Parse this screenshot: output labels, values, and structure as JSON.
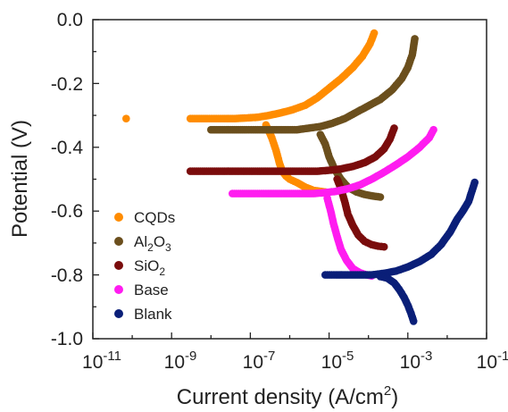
{
  "chart_data": {
    "type": "scatter",
    "title": "",
    "xlabel": "Current density (A/cm2)",
    "ylabel": "Potential (V)",
    "x_scale": "log",
    "xlim": [
      1e-11,
      0.1
    ],
    "ylim": [
      -1.0,
      0.0
    ],
    "x_ticks": [
      "10-11",
      "10-9",
      "10-7",
      "10-5",
      "10-3",
      "10-1"
    ],
    "y_ticks": [
      "0.0",
      "-0.2",
      "-0.4",
      "-0.6",
      "-0.8",
      "-1.0"
    ],
    "grid": false,
    "legend_position": "lower-left",
    "series": [
      {
        "name": "CQDs",
        "color": "#ff8c00",
        "points": [
          [
            7e-11,
            -0.31
          ],
          [
            3e-09,
            -0.31
          ],
          [
            5e-09,
            -0.31
          ],
          [
            8e-09,
            -0.31
          ],
          [
            1.2e-08,
            -0.31
          ],
          [
            2e-08,
            -0.31
          ],
          [
            4e-08,
            -0.31
          ],
          [
            8e-08,
            -0.308
          ],
          [
            1.5e-07,
            -0.306
          ],
          [
            3e-07,
            -0.3
          ],
          [
            6e-07,
            -0.292
          ],
          [
            1.2e-06,
            -0.282
          ],
          [
            2.5e-06,
            -0.268
          ],
          [
            5e-06,
            -0.245
          ],
          [
            1e-05,
            -0.215
          ],
          [
            2e-05,
            -0.185
          ],
          [
            4e-05,
            -0.15
          ],
          [
            7e-05,
            -0.115
          ],
          [
            0.00011,
            -0.075
          ],
          [
            0.00014,
            -0.042
          ],
          [
            2.5e-07,
            -0.33
          ],
          [
            3.5e-07,
            -0.37
          ],
          [
            4.5e-07,
            -0.41
          ],
          [
            5.5e-07,
            -0.45
          ],
          [
            6.5e-07,
            -0.475
          ],
          [
            8e-07,
            -0.49
          ],
          [
            1e-06,
            -0.5
          ],
          [
            1.5e-06,
            -0.51
          ],
          [
            2.5e-06,
            -0.525
          ],
          [
            4e-06,
            -0.535
          ],
          [
            8e-06,
            -0.54
          ]
        ]
      },
      {
        "name": "Al2O3",
        "color": "#6b4f1d",
        "points": [
          [
            1e-08,
            -0.345
          ],
          [
            5e-08,
            -0.345
          ],
          [
            8e-08,
            -0.345
          ],
          [
            1.2e-07,
            -0.345
          ],
          [
            2e-07,
            -0.345
          ],
          [
            4e-07,
            -0.345
          ],
          [
            8e-07,
            -0.345
          ],
          [
            1.5e-06,
            -0.345
          ],
          [
            3e-06,
            -0.34
          ],
          [
            6e-06,
            -0.335
          ],
          [
            1.2e-05,
            -0.325
          ],
          [
            2.5e-05,
            -0.31
          ],
          [
            5e-05,
            -0.29
          ],
          [
            0.0001,
            -0.27
          ],
          [
            0.0002,
            -0.25
          ],
          [
            0.0004,
            -0.22
          ],
          [
            0.0007,
            -0.185
          ],
          [
            0.001,
            -0.15
          ],
          [
            0.0013,
            -0.11
          ],
          [
            0.0015,
            -0.06
          ],
          [
            6e-06,
            -0.36
          ],
          [
            8e-06,
            -0.39
          ],
          [
            1e-05,
            -0.43
          ],
          [
            1.4e-05,
            -0.47
          ],
          [
            2e-05,
            -0.5
          ],
          [
            3e-05,
            -0.525
          ],
          [
            5e-05,
            -0.54
          ],
          [
            8e-05,
            -0.548
          ],
          [
            0.00012,
            -0.552
          ],
          [
            0.0002,
            -0.556
          ]
        ]
      },
      {
        "name": "SiO2",
        "color": "#7a0c0c",
        "points": [
          [
            3e-09,
            -0.475
          ],
          [
            2e-08,
            -0.475
          ],
          [
            1.5e-07,
            -0.475
          ],
          [
            3e-07,
            -0.475
          ],
          [
            6e-07,
            -0.475
          ],
          [
            1.2e-06,
            -0.475
          ],
          [
            2.5e-06,
            -0.475
          ],
          [
            5e-06,
            -0.475
          ],
          [
            1e-05,
            -0.472
          ],
          [
            2e-05,
            -0.468
          ],
          [
            4e-05,
            -0.46
          ],
          [
            8e-05,
            -0.448
          ],
          [
            0.00015,
            -0.43
          ],
          [
            0.00025,
            -0.405
          ],
          [
            0.00035,
            -0.375
          ],
          [
            0.00045,
            -0.34
          ],
          [
            1.6e-05,
            -0.5
          ],
          [
            2e-05,
            -0.53
          ],
          [
            2.5e-05,
            -0.57
          ],
          [
            3e-05,
            -0.61
          ],
          [
            4e-05,
            -0.645
          ],
          [
            5.5e-05,
            -0.675
          ],
          [
            8e-05,
            -0.695
          ],
          [
            0.00012,
            -0.705
          ],
          [
            0.00018,
            -0.71
          ],
          [
            0.00025,
            -0.712
          ]
        ]
      },
      {
        "name": "Base",
        "color": "#ff1cf0",
        "points": [
          [
            3.5e-08,
            -0.545
          ],
          [
            1.5e-07,
            -0.545
          ],
          [
            2.5e-07,
            -0.545
          ],
          [
            5e-07,
            -0.545
          ],
          [
            1e-06,
            -0.545
          ],
          [
            2e-06,
            -0.545
          ],
          [
            4e-06,
            -0.545
          ],
          [
            8e-06,
            -0.542
          ],
          [
            1.5e-05,
            -0.538
          ],
          [
            3e-05,
            -0.53
          ],
          [
            6e-05,
            -0.518
          ],
          [
            0.00012,
            -0.5
          ],
          [
            0.00025,
            -0.478
          ],
          [
            0.0005,
            -0.455
          ],
          [
            0.001,
            -0.43
          ],
          [
            0.002,
            -0.4
          ],
          [
            0.0035,
            -0.37
          ],
          [
            0.0045,
            -0.345
          ],
          [
            9e-06,
            -0.56
          ],
          [
            1.1e-05,
            -0.6
          ],
          [
            1.3e-05,
            -0.64
          ],
          [
            1.6e-05,
            -0.68
          ],
          [
            2e-05,
            -0.72
          ],
          [
            2.8e-05,
            -0.755
          ],
          [
            4e-05,
            -0.78
          ],
          [
            6e-05,
            -0.793
          ],
          [
            9e-05,
            -0.8
          ],
          [
            0.00012,
            -0.803
          ]
        ]
      },
      {
        "name": "Blank",
        "color": "#0a1f78",
        "points": [
          [
            8e-06,
            -0.8
          ],
          [
            1.5e-05,
            -0.8
          ],
          [
            3e-05,
            -0.8
          ],
          [
            6e-05,
            -0.8
          ],
          [
            0.00012,
            -0.8
          ],
          [
            0.00025,
            -0.795
          ],
          [
            0.0005,
            -0.788
          ],
          [
            0.001,
            -0.775
          ],
          [
            0.002,
            -0.758
          ],
          [
            0.004,
            -0.735
          ],
          [
            0.007,
            -0.705
          ],
          [
            0.012,
            -0.665
          ],
          [
            0.018,
            -0.625
          ],
          [
            0.025,
            -0.6
          ],
          [
            0.035,
            -0.57
          ],
          [
            0.05,
            -0.51
          ],
          [
            0.0002,
            -0.805
          ],
          [
            0.0003,
            -0.81
          ],
          [
            0.00045,
            -0.825
          ],
          [
            0.0006,
            -0.845
          ],
          [
            0.0008,
            -0.87
          ],
          [
            0.001,
            -0.895
          ],
          [
            0.0012,
            -0.92
          ],
          [
            0.0014,
            -0.945
          ]
        ]
      }
    ]
  },
  "legend": {
    "cqds": "CQDs",
    "al2o3_base": "Al",
    "al2o3_sub1": "2",
    "al2o3_mid": "O",
    "al2o3_sub2": "3",
    "sio2_base": "SiO",
    "sio2_sub": "2",
    "base": "Base",
    "blank": "Blank"
  },
  "axes": {
    "xlabel_base": "Current density (A/cm",
    "xlabel_sup": "2",
    "xlabel_end": ")",
    "ylabel": "Potential (V)",
    "x_tick_base": "10",
    "x_tick_exps": [
      "-11",
      "-9",
      "-7",
      "-5",
      "-3",
      "-1"
    ],
    "y_ticks": [
      "0.0",
      "-0.2",
      "-0.4",
      "-0.6",
      "-0.8",
      "-1.0"
    ]
  }
}
